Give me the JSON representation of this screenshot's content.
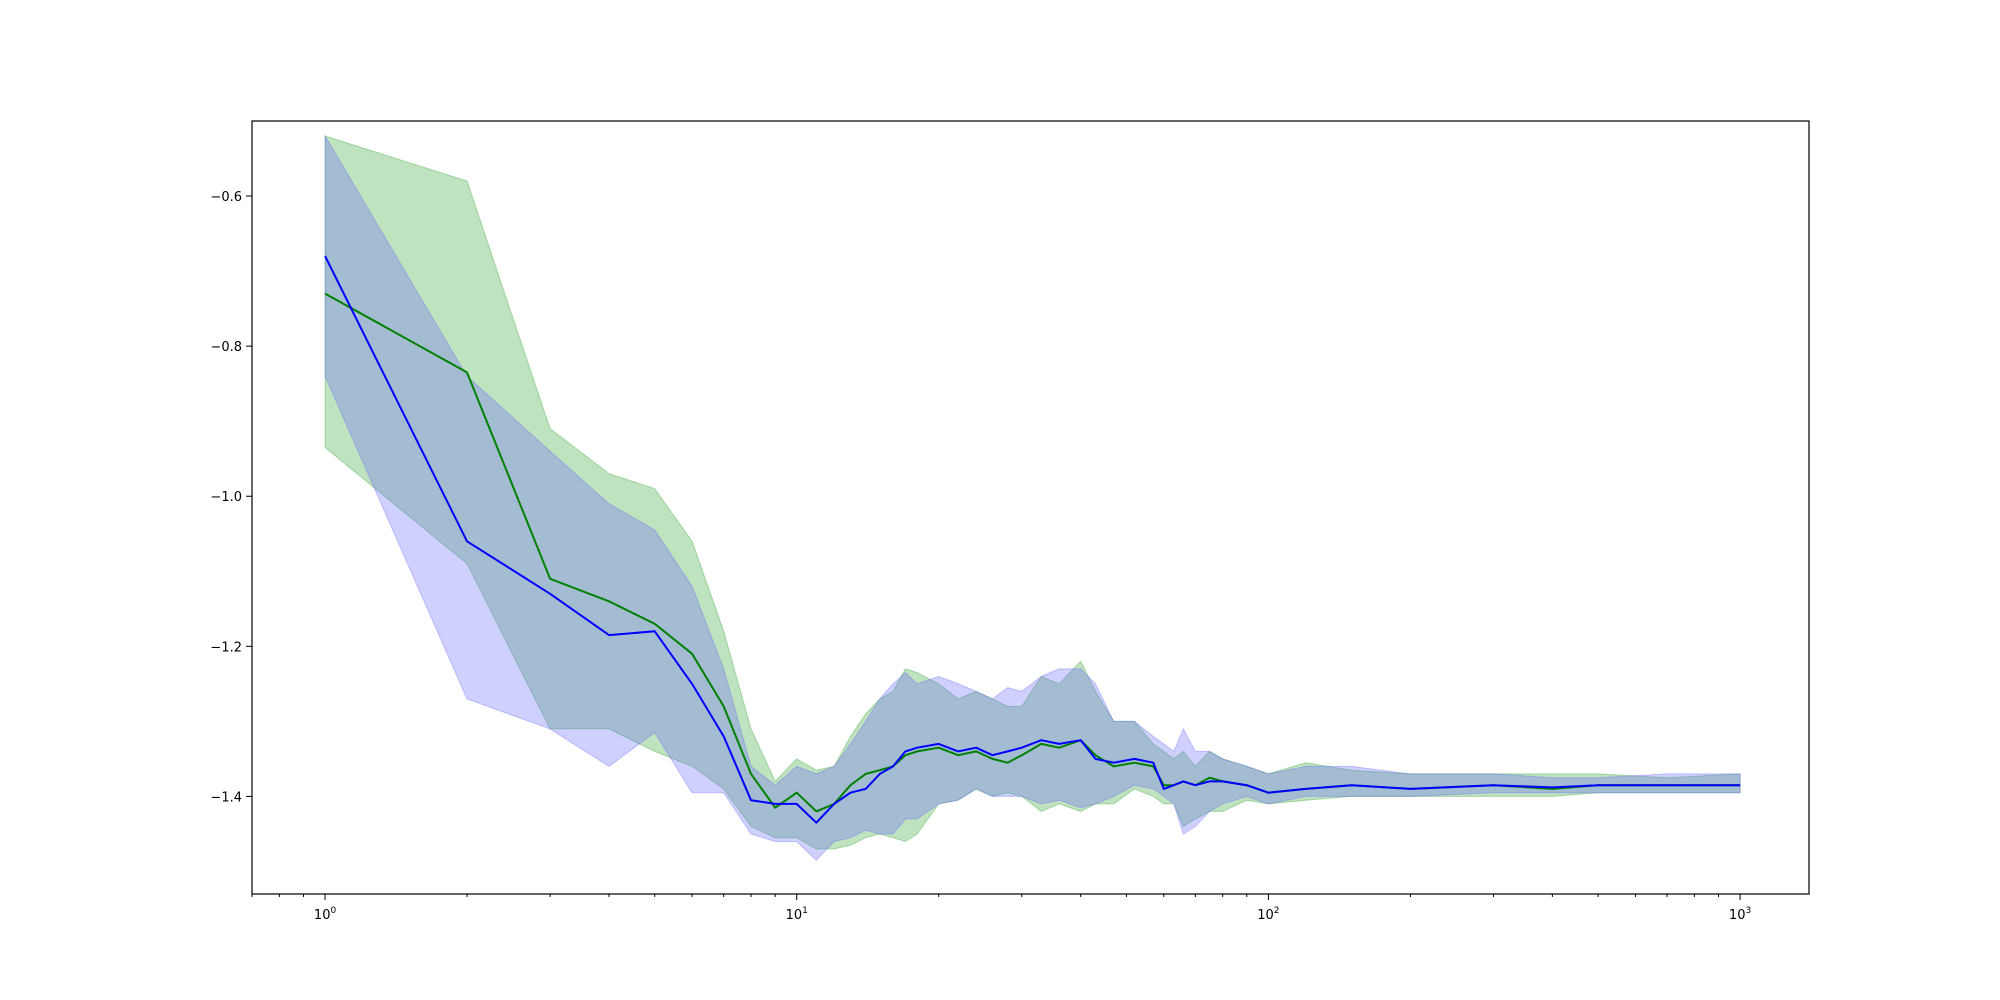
{
  "chart_data": {
    "type": "line",
    "title": "",
    "xlabel": "",
    "ylabel": "",
    "xscale": "log",
    "xlim": [
      0.7,
      1400
    ],
    "ylim": [
      -1.53,
      -0.5
    ],
    "grid": false,
    "legend": "none",
    "x_ticks": [
      {
        "value": 1,
        "base": "10",
        "exp": "0"
      },
      {
        "value": 10,
        "base": "10",
        "exp": "1"
      },
      {
        "value": 100,
        "base": "10",
        "exp": "2"
      },
      {
        "value": 1000,
        "base": "10",
        "exp": "3"
      }
    ],
    "y_ticks": [
      {
        "value": -0.6,
        "label": "−0.6"
      },
      {
        "value": -0.8,
        "label": "−0.8"
      },
      {
        "value": -1.0,
        "label": "−1.0"
      },
      {
        "value": -1.2,
        "label": "−1.2"
      },
      {
        "value": -1.4,
        "label": "−1.4"
      }
    ],
    "series": [
      {
        "color": "#008000",
        "band_color": "#2ca02c",
        "x": [
          1,
          2,
          3,
          4,
          5,
          6,
          7,
          8,
          9,
          10,
          11,
          12,
          13,
          14,
          15,
          16,
          17,
          18,
          20,
          22,
          24,
          26,
          28,
          30,
          33,
          36,
          40,
          43,
          47,
          52,
          57,
          60,
          63,
          66,
          70,
          75,
          80,
          90,
          100,
          120,
          150,
          200,
          300,
          400,
          500,
          700,
          1000
        ],
        "y": [
          -0.73,
          -0.835,
          -1.11,
          -1.14,
          -1.17,
          -1.21,
          -1.28,
          -1.37,
          -1.415,
          -1.395,
          -1.42,
          -1.41,
          -1.385,
          -1.37,
          -1.365,
          -1.36,
          -1.345,
          -1.34,
          -1.335,
          -1.345,
          -1.34,
          -1.35,
          -1.355,
          -1.345,
          -1.33,
          -1.335,
          -1.325,
          -1.345,
          -1.36,
          -1.355,
          -1.36,
          -1.385,
          -1.385,
          -1.38,
          -1.385,
          -1.375,
          -1.38,
          -1.385,
          -1.395,
          -1.39,
          -1.385,
          -1.39,
          -1.385,
          -1.39,
          -1.385,
          -1.385,
          -1.385
        ],
        "lower": [
          -0.935,
          -1.09,
          -1.31,
          -1.31,
          -1.34,
          -1.36,
          -1.39,
          -1.44,
          -1.455,
          -1.455,
          -1.47,
          -1.47,
          -1.465,
          -1.455,
          -1.45,
          -1.455,
          -1.46,
          -1.45,
          -1.41,
          -1.405,
          -1.39,
          -1.4,
          -1.395,
          -1.4,
          -1.42,
          -1.41,
          -1.42,
          -1.41,
          -1.41,
          -1.39,
          -1.4,
          -1.41,
          -1.41,
          -1.44,
          -1.43,
          -1.42,
          -1.42,
          -1.405,
          -1.41,
          -1.405,
          -1.4,
          -1.4,
          -1.4,
          -1.4,
          -1.395,
          -1.395,
          -1.395
        ],
        "upper": [
          -0.52,
          -0.58,
          -0.91,
          -0.97,
          -0.99,
          -1.06,
          -1.18,
          -1.31,
          -1.38,
          -1.35,
          -1.365,
          -1.36,
          -1.32,
          -1.29,
          -1.27,
          -1.26,
          -1.23,
          -1.235,
          -1.25,
          -1.27,
          -1.26,
          -1.27,
          -1.28,
          -1.28,
          -1.24,
          -1.25,
          -1.22,
          -1.26,
          -1.3,
          -1.3,
          -1.33,
          -1.34,
          -1.35,
          -1.34,
          -1.36,
          -1.34,
          -1.35,
          -1.36,
          -1.37,
          -1.355,
          -1.365,
          -1.37,
          -1.37,
          -1.37,
          -1.37,
          -1.375,
          -1.37
        ]
      },
      {
        "color": "#0000ff",
        "band_color": "#6464ff",
        "x": [
          1,
          2,
          3,
          4,
          5,
          6,
          7,
          8,
          9,
          10,
          11,
          12,
          13,
          14,
          15,
          16,
          17,
          18,
          20,
          22,
          24,
          26,
          28,
          30,
          33,
          36,
          40,
          43,
          47,
          52,
          57,
          60,
          63,
          66,
          70,
          75,
          80,
          90,
          100,
          120,
          150,
          200,
          300,
          400,
          500,
          700,
          1000
        ],
        "y": [
          -0.68,
          -1.06,
          -1.13,
          -1.185,
          -1.18,
          -1.25,
          -1.32,
          -1.405,
          -1.41,
          -1.41,
          -1.435,
          -1.41,
          -1.395,
          -1.39,
          -1.37,
          -1.36,
          -1.34,
          -1.335,
          -1.33,
          -1.34,
          -1.335,
          -1.345,
          -1.34,
          -1.335,
          -1.325,
          -1.33,
          -1.325,
          -1.35,
          -1.355,
          -1.35,
          -1.355,
          -1.39,
          -1.385,
          -1.38,
          -1.385,
          -1.38,
          -1.38,
          -1.385,
          -1.395,
          -1.39,
          -1.385,
          -1.39,
          -1.385,
          -1.388,
          -1.385,
          -1.385,
          -1.385
        ],
        "lower": [
          -0.84,
          -1.27,
          -1.31,
          -1.36,
          -1.315,
          -1.395,
          -1.395,
          -1.45,
          -1.46,
          -1.46,
          -1.485,
          -1.46,
          -1.455,
          -1.445,
          -1.45,
          -1.45,
          -1.43,
          -1.43,
          -1.41,
          -1.405,
          -1.39,
          -1.4,
          -1.4,
          -1.4,
          -1.41,
          -1.405,
          -1.415,
          -1.41,
          -1.4,
          -1.385,
          -1.39,
          -1.4,
          -1.41,
          -1.45,
          -1.44,
          -1.42,
          -1.41,
          -1.4,
          -1.41,
          -1.4,
          -1.4,
          -1.4,
          -1.395,
          -1.395,
          -1.395,
          -1.395,
          -1.395
        ],
        "upper": [
          -0.52,
          -0.84,
          -0.94,
          -1.01,
          -1.045,
          -1.12,
          -1.23,
          -1.36,
          -1.385,
          -1.36,
          -1.37,
          -1.36,
          -1.33,
          -1.3,
          -1.27,
          -1.25,
          -1.235,
          -1.25,
          -1.24,
          -1.25,
          -1.26,
          -1.27,
          -1.255,
          -1.26,
          -1.24,
          -1.23,
          -1.23,
          -1.25,
          -1.3,
          -1.3,
          -1.32,
          -1.33,
          -1.34,
          -1.31,
          -1.34,
          -1.34,
          -1.35,
          -1.36,
          -1.37,
          -1.36,
          -1.36,
          -1.37,
          -1.37,
          -1.375,
          -1.375,
          -1.37,
          -1.37
        ]
      }
    ]
  }
}
